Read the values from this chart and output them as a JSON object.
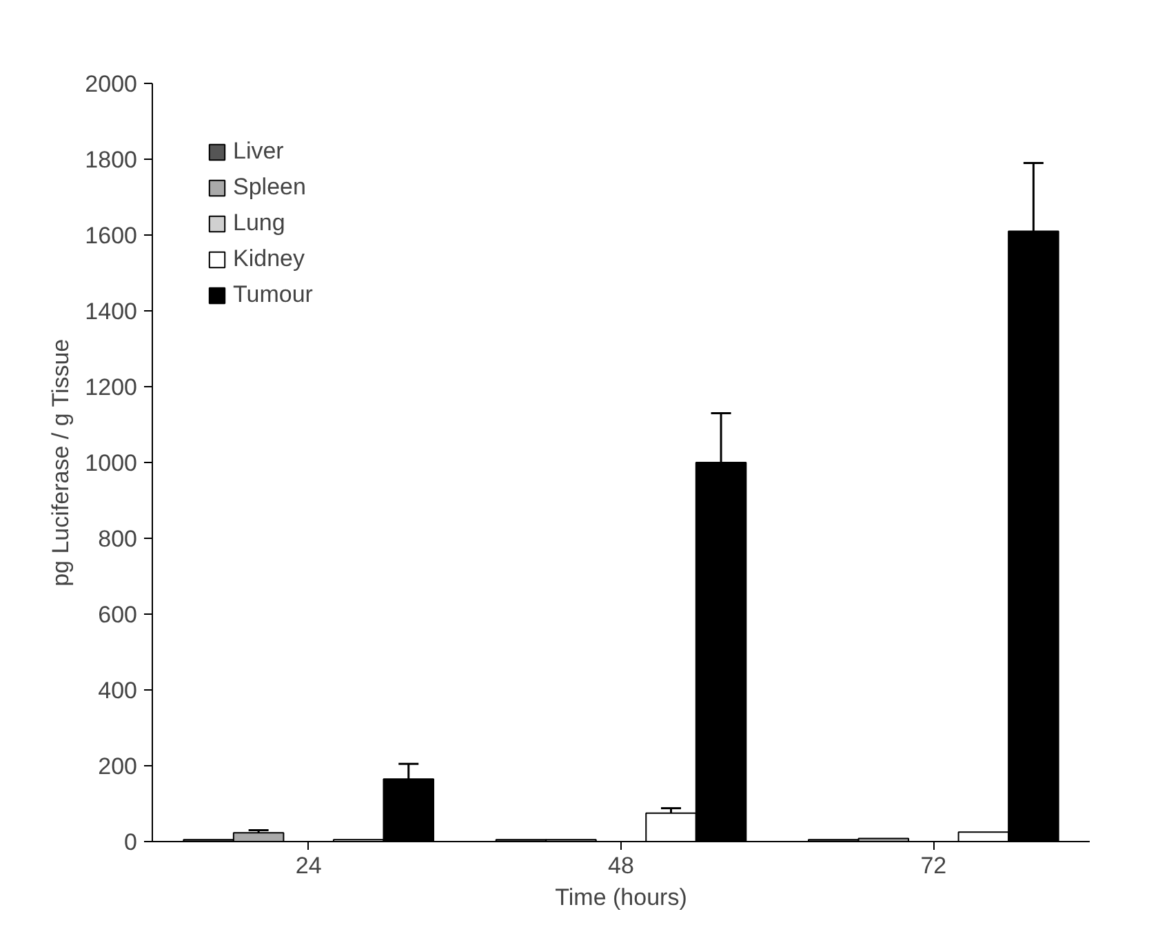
{
  "chart_data": {
    "type": "bar",
    "xlabel": "Time (hours)",
    "ylabel": "pg Luciferase / g Tissue",
    "categories": [
      "24",
      "48",
      "72"
    ],
    "ylim": [
      0,
      2000
    ],
    "yticks": [
      0,
      200,
      400,
      600,
      800,
      1000,
      1200,
      1400,
      1600,
      1800,
      2000
    ],
    "grid": false,
    "legend": "top left",
    "series": [
      {
        "name": "Liver",
        "color": "#555555",
        "values": [
          5,
          5,
          5
        ]
      },
      {
        "name": "Spleen",
        "color": "#aaaaaa",
        "values": [
          23,
          5,
          8
        ],
        "errors": [
          [
            23,
            30
          ],
          null,
          null
        ]
      },
      {
        "name": "Lung",
        "color": "#d0d0d0",
        "values": [
          null,
          null,
          null
        ]
      },
      {
        "name": "Kidney",
        "color": "#ffffff",
        "values": [
          5,
          75,
          25
        ],
        "errors": [
          null,
          [
            75,
            88
          ],
          null
        ]
      },
      {
        "name": "Tumour",
        "color": "#000000",
        "values": [
          165,
          1000,
          1610
        ],
        "errors": [
          [
            165,
            205
          ],
          [
            1000,
            1130
          ],
          [
            1610,
            1790
          ]
        ]
      }
    ]
  }
}
